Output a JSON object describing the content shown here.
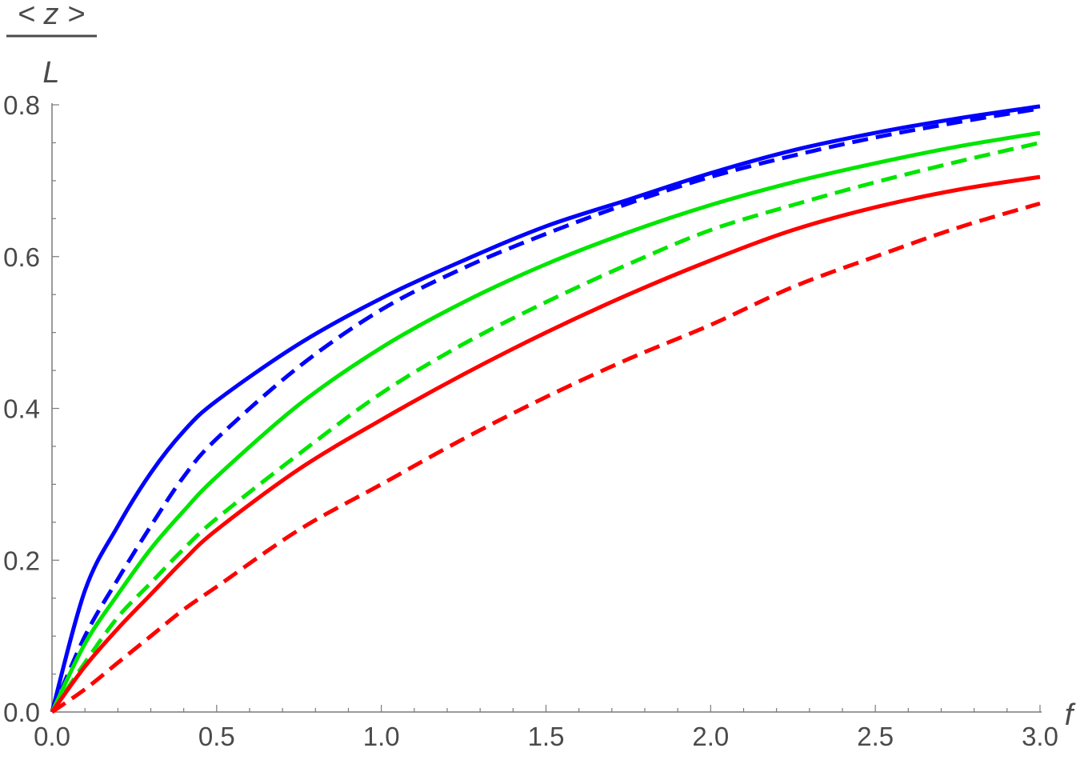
{
  "chart_data": {
    "type": "line",
    "xlabel": "f",
    "ylabel_numerator": "< z >",
    "ylabel_denominator": "L",
    "xlim": [
      0,
      3
    ],
    "ylim": [
      0,
      0.8
    ],
    "xticks": [
      "0.0",
      "0.5",
      "1.0",
      "1.5",
      "2.0",
      "2.5",
      "3.0"
    ],
    "yticks": [
      "0.0",
      "0.2",
      "0.4",
      "0.6",
      "0.8"
    ],
    "grid": false,
    "legend": "none",
    "series": [
      {
        "color": "#0000ff",
        "style": "solid",
        "x": [
          0,
          0.1,
          0.2,
          0.3,
          0.4,
          0.5,
          0.75,
          1.0,
          1.25,
          1.5,
          1.75,
          2.0,
          2.25,
          2.5,
          2.75,
          3.0
        ],
        "y": [
          0,
          0.16,
          0.245,
          0.315,
          0.37,
          0.41,
          0.485,
          0.545,
          0.595,
          0.64,
          0.675,
          0.71,
          0.74,
          0.763,
          0.782,
          0.798
        ]
      },
      {
        "color": "#0000ff",
        "style": "dashed",
        "x": [
          0,
          0.1,
          0.2,
          0.3,
          0.4,
          0.5,
          0.75,
          1.0,
          1.25,
          1.5,
          1.75,
          2.0,
          2.25,
          2.5,
          2.75,
          3.0
        ],
        "y": [
          0,
          0.1,
          0.175,
          0.245,
          0.31,
          0.36,
          0.455,
          0.53,
          0.585,
          0.63,
          0.67,
          0.705,
          0.733,
          0.757,
          0.777,
          0.795
        ]
      },
      {
        "color": "#00e600",
        "style": "solid",
        "x": [
          0,
          0.1,
          0.2,
          0.3,
          0.4,
          0.5,
          0.75,
          1.0,
          1.25,
          1.5,
          1.75,
          2.0,
          2.25,
          2.5,
          2.75,
          3.0
        ],
        "y": [
          0,
          0.09,
          0.155,
          0.215,
          0.265,
          0.31,
          0.405,
          0.48,
          0.54,
          0.59,
          0.632,
          0.668,
          0.698,
          0.723,
          0.745,
          0.763
        ]
      },
      {
        "color": "#00e600",
        "style": "dashed",
        "x": [
          0,
          0.1,
          0.2,
          0.3,
          0.4,
          0.5,
          0.75,
          1.0,
          1.25,
          1.5,
          1.75,
          2.0,
          2.25,
          2.5,
          2.75,
          3.0
        ],
        "y": [
          0,
          0.065,
          0.125,
          0.17,
          0.215,
          0.255,
          0.34,
          0.42,
          0.485,
          0.54,
          0.59,
          0.635,
          0.668,
          0.698,
          0.725,
          0.75
        ]
      },
      {
        "color": "#ff0000",
        "style": "solid",
        "x": [
          0,
          0.1,
          0.2,
          0.3,
          0.4,
          0.5,
          0.75,
          1.0,
          1.25,
          1.5,
          1.75,
          2.0,
          2.25,
          2.5,
          2.75,
          3.0
        ],
        "y": [
          0,
          0.06,
          0.11,
          0.155,
          0.2,
          0.24,
          0.32,
          0.385,
          0.445,
          0.5,
          0.55,
          0.595,
          0.635,
          0.665,
          0.688,
          0.705
        ]
      },
      {
        "color": "#ff0000",
        "style": "dashed",
        "x": [
          0,
          0.1,
          0.2,
          0.3,
          0.4,
          0.5,
          0.75,
          1.0,
          1.25,
          1.5,
          1.75,
          2.0,
          2.25,
          2.5,
          2.75,
          3.0
        ],
        "y": [
          0,
          0.03,
          0.065,
          0.1,
          0.135,
          0.165,
          0.24,
          0.3,
          0.36,
          0.415,
          0.465,
          0.51,
          0.56,
          0.6,
          0.638,
          0.67
        ]
      }
    ]
  }
}
